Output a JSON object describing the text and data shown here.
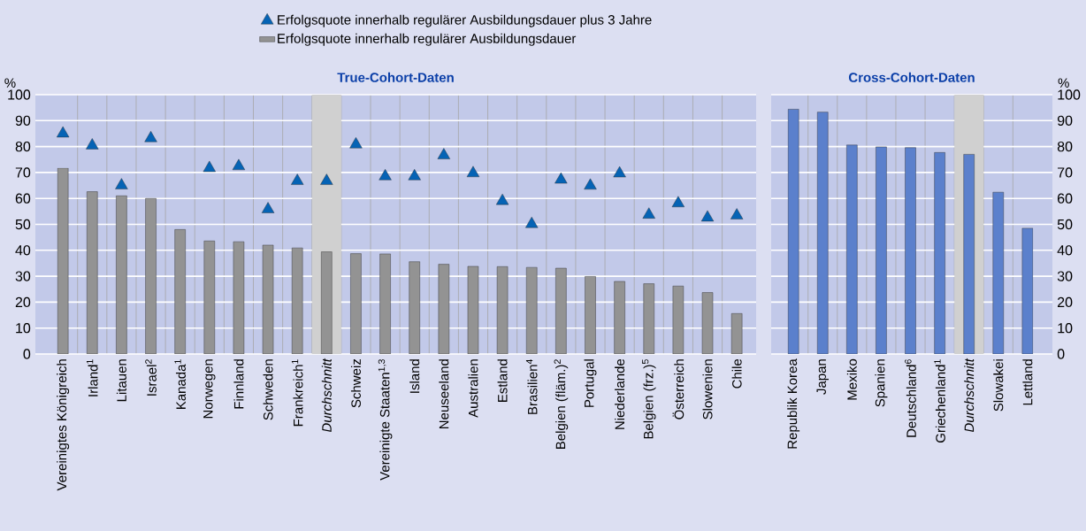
{
  "chart_data": [
    {
      "type": "bar",
      "title": "True-Cohort-Daten",
      "ylabel": "%",
      "categories": [
        "Vereinigtes Königreich",
        "Irland$^{1}$",
        "Litauen",
        "Israel$^{2}$",
        "Kanada$^{1}$",
        "Norwegen",
        "Finnland",
        "Schweden",
        "Frankreich$^{1}$",
        "Durchschnitt",
        "Schweiz",
        "Vereinigte Staaten$^{1,3}$",
        "Island",
        "Neuseeland",
        "Australien",
        "Estland",
        "Brasilien$^{4}$",
        "Belgien (fläm.)$^{2}$",
        "Portugal",
        "Niederlande",
        "Belgien (frz.)$^{5}$",
        "Österreich",
        "Slowenien",
        "Chile"
      ],
      "series": [
        {
          "name": "Erfolgsquote innerhalb regulärer Ausbildungsdauer plus 3 Jahre",
          "type": "scatter",
          "color": "#0563b5",
          "values": [
            85,
            80.4,
            65,
            83.2,
            null,
            71.7,
            72.4,
            55.8,
            66.7,
            66.7,
            80.8,
            68.5,
            68.5,
            76.6,
            69.7,
            59,
            50.1,
            67.2,
            64.9,
            69.6,
            53.7,
            58.1,
            52.6,
            53.4
          ]
        },
        {
          "name": "Erfolgsquote innerhalb regulärer Ausbildungsdauer",
          "type": "bar",
          "color": "#939393",
          "values": [
            71.7,
            62.6,
            61,
            60,
            48,
            43.6,
            43.3,
            42,
            40.9,
            39.4,
            38.7,
            38.6,
            35.6,
            34.6,
            33.8,
            33.7,
            33.4,
            33.1,
            29.9,
            28,
            27.1,
            26.2,
            23.7,
            15.6
          ]
        }
      ],
      "marker": "triangle",
      "bands": [
        {
          "axis": "x",
          "from": "Durchschnitt",
          "to": "Durchschnitt",
          "color": "#d0d0d0"
        }
      ],
      "ylim": [
        0,
        100
      ],
      "yticks": [
        0,
        10,
        20,
        30,
        40,
        50,
        60,
        70,
        80,
        90,
        100
      ],
      "grid": "y",
      "legend": "top"
    },
    {
      "type": "bar",
      "title": "Cross-Cohort-Daten",
      "ylabel": "%",
      "categories": [
        "Republik Korea",
        "Japan",
        "Mexiko",
        "Spanien",
        "Deutschland$^{6}$",
        "Griechenland$^{1}$",
        "Durchschnitt",
        "Slowakei",
        "Lettland"
      ],
      "values": [
        94.4,
        93.3,
        80.6,
        79.9,
        79.6,
        77.7,
        77,
        62.4,
        48.5
      ],
      "color": "#5b80cc",
      "bands": [
        {
          "axis": "x",
          "from": "Durchschnitt",
          "to": "Durchschnitt",
          "color": "#d0d0d0"
        }
      ],
      "ylim": [
        0,
        100
      ],
      "yticks": [
        0,
        10,
        20,
        30,
        40,
        50,
        60,
        70,
        80,
        90,
        100
      ],
      "grid": "y"
    }
  ]
}
